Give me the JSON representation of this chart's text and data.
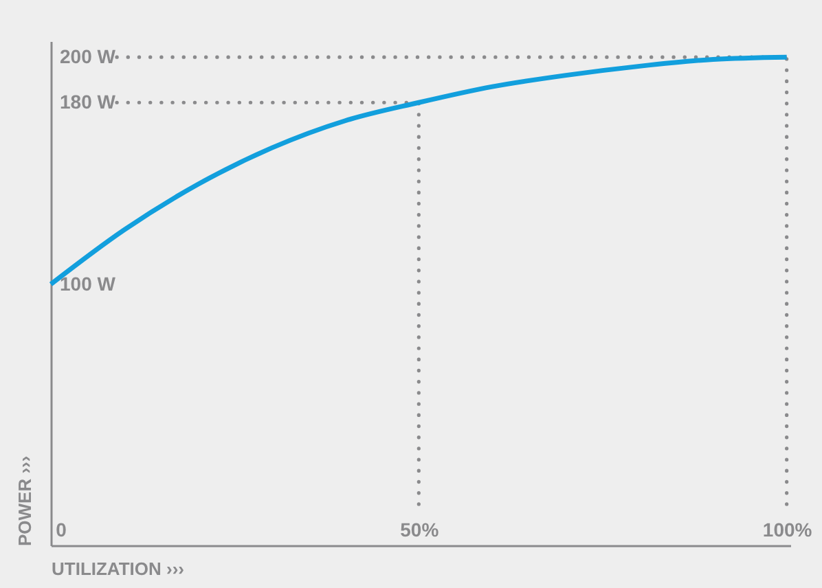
{
  "chart_data": {
    "type": "line",
    "xlabel": "UTILIZATION ›››",
    "ylabel": "POWER ›››",
    "x": [
      0,
      10,
      20,
      30,
      40,
      50,
      60,
      70,
      80,
      90,
      100
    ],
    "series": [
      {
        "color": "#129fdd",
        "values": [
          100,
          124,
          144,
          160,
          172,
          180,
          187,
          192,
          196,
          199,
          200
        ]
      }
    ],
    "xlim": [
      0,
      100.5
    ],
    "ylim": [
      -15,
      207
    ],
    "xticks": [
      {
        "value": 0,
        "label": "0"
      },
      {
        "value": 50,
        "label": "50%"
      },
      {
        "value": 100,
        "label": "100%"
      }
    ],
    "yticks": [
      {
        "value": 100,
        "label": "100 W"
      },
      {
        "value": 180,
        "label": "180 W"
      },
      {
        "value": 200,
        "label": "200 W"
      }
    ],
    "ref_lines": [
      {
        "axis": "y",
        "value": 200,
        "color": "#8a8a8c",
        "line_style": "dotted"
      },
      {
        "axis": "y",
        "value": 180,
        "color": "#8a8a8c",
        "line_style": "dotted"
      },
      {
        "axis": "x",
        "value": 50,
        "color": "#8a8a8c",
        "line_style": "dotted"
      },
      {
        "axis": "x",
        "value": 100,
        "color": "#8a8a8c",
        "line_style": "dotted"
      }
    ],
    "grid": false,
    "marker": "none",
    "line_style": "solid"
  }
}
